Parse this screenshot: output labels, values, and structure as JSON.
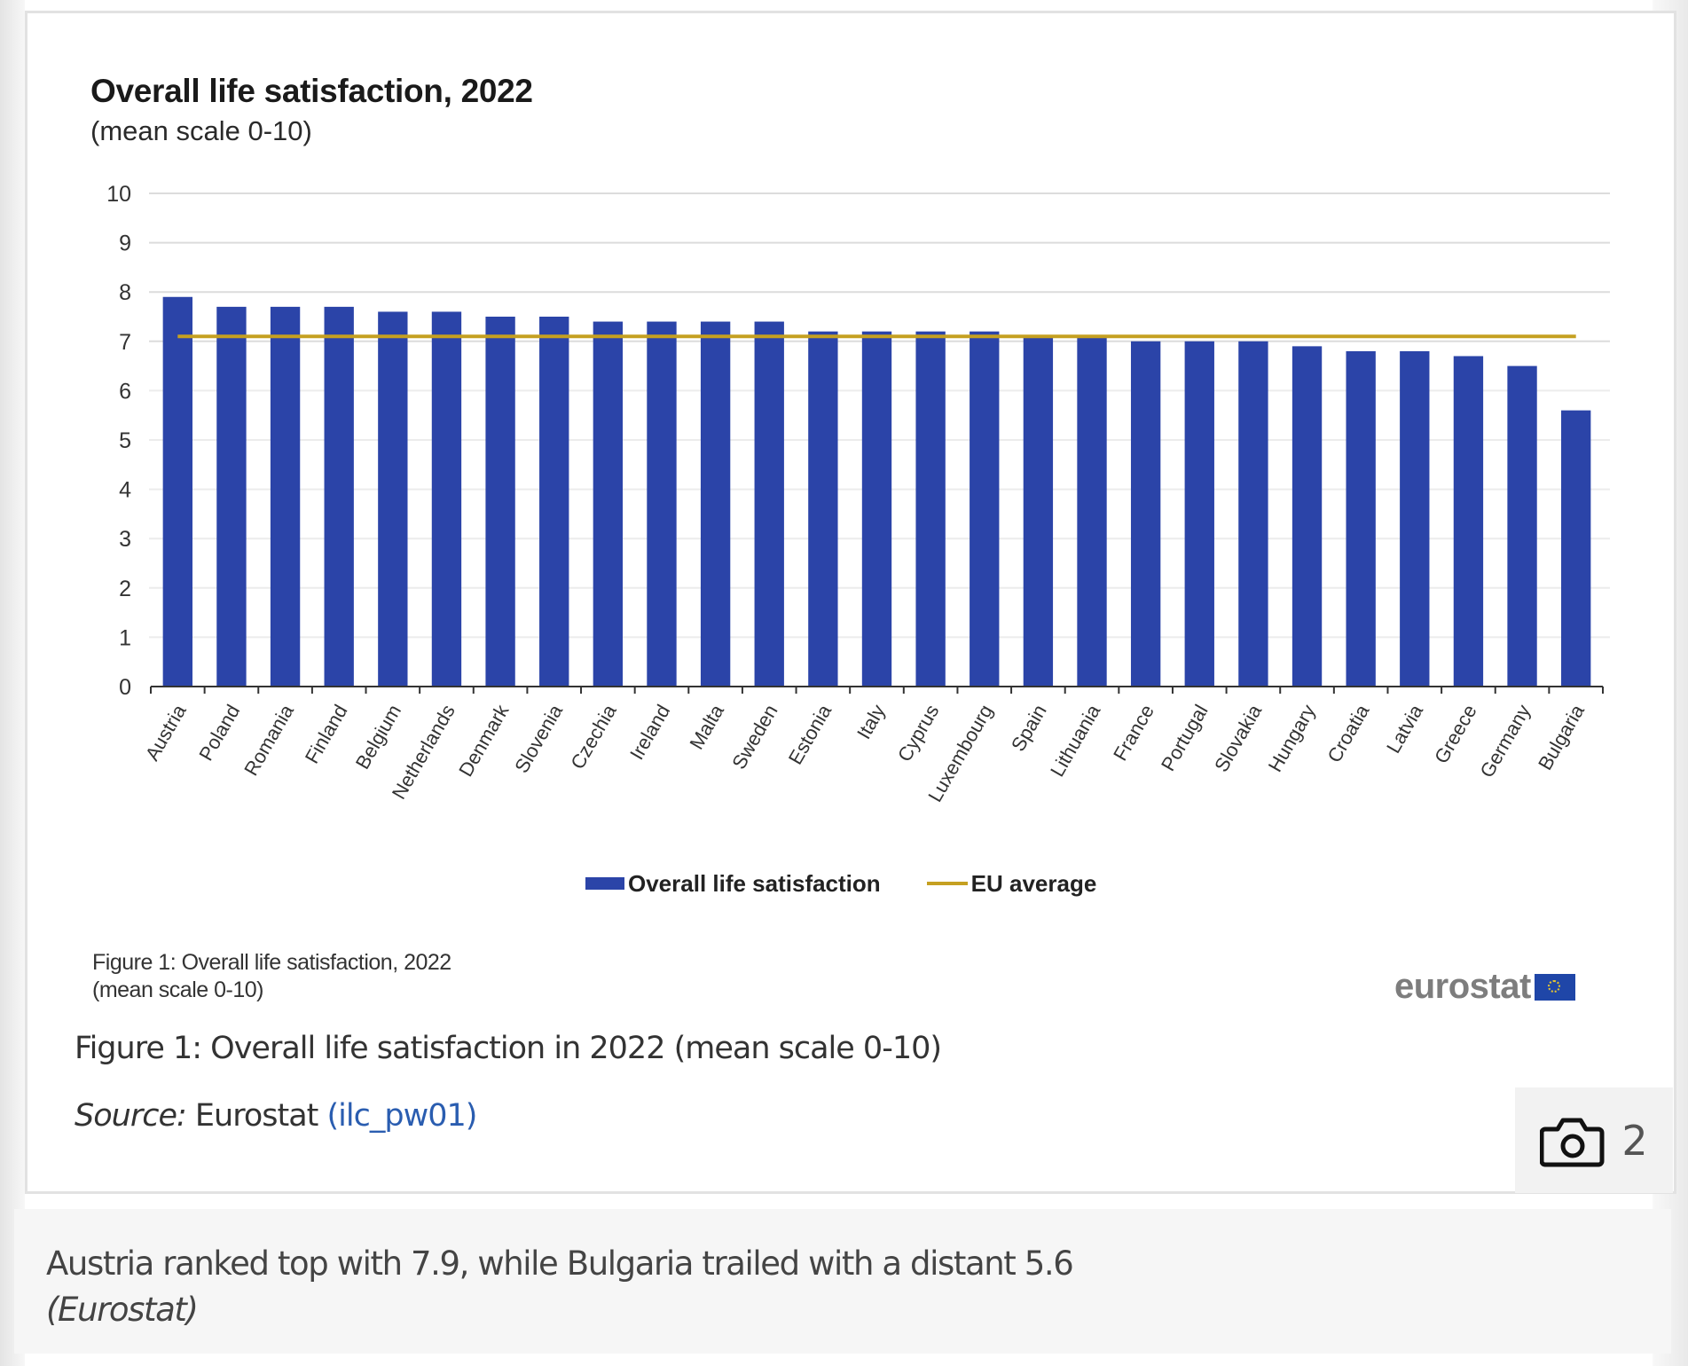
{
  "chart_data": {
    "type": "bar",
    "title": "Overall life satisfaction, 2022",
    "subtitle": "(mean scale 0-10)",
    "xlabel": "",
    "ylabel": "",
    "ylim": [
      0,
      10
    ],
    "yticks": [
      "0",
      "1",
      "2",
      "3",
      "4",
      "5",
      "6",
      "7",
      "8",
      "9",
      "10"
    ],
    "grid": true,
    "legend_position": "bottom",
    "categories": [
      "Austria",
      "Poland",
      "Romania",
      "Finland",
      "Belgium",
      "Netherlands",
      "Denmark",
      "Slovenia",
      "Czechia",
      "Ireland",
      "Malta",
      "Sweden",
      "Estonia",
      "Italy",
      "Cyprus",
      "Luxembourg",
      "Spain",
      "Lithuania",
      "France",
      "Portugal",
      "Slovakia",
      "Hungary",
      "Croatia",
      "Latvia",
      "Greece",
      "Germany",
      "Bulgaria"
    ],
    "series": [
      {
        "name": "Overall life satisfaction",
        "type": "bar",
        "color": "#2b44a8",
        "values": [
          7.9,
          7.7,
          7.7,
          7.7,
          7.6,
          7.6,
          7.5,
          7.5,
          7.4,
          7.4,
          7.4,
          7.4,
          7.2,
          7.2,
          7.2,
          7.2,
          7.1,
          7.1,
          7.0,
          7.0,
          7.0,
          6.9,
          6.8,
          6.8,
          6.7,
          6.5,
          5.6
        ]
      },
      {
        "name": "EU average",
        "type": "line",
        "color": "#c5a021",
        "value": 7.1
      }
    ]
  },
  "figure_note": {
    "line1": "Figure 1: Overall life satisfaction, 2022",
    "line2": "(mean scale 0-10)"
  },
  "logo": {
    "text": "eurostat",
    "icon": "eu-flag-icon"
  },
  "figure_caption": "Figure 1: Overall life satisfaction in 2022 (mean scale 0-10)",
  "source": {
    "label": "Source:",
    "name": " Eurostat ",
    "link": "(ilc_pw01)"
  },
  "gallery": {
    "icon": "camera-icon",
    "count": "2"
  },
  "caption": {
    "text": "Austria ranked top with 7.9, while Bulgaria trailed with a distant 5.6",
    "credit": "(Eurostat)"
  }
}
